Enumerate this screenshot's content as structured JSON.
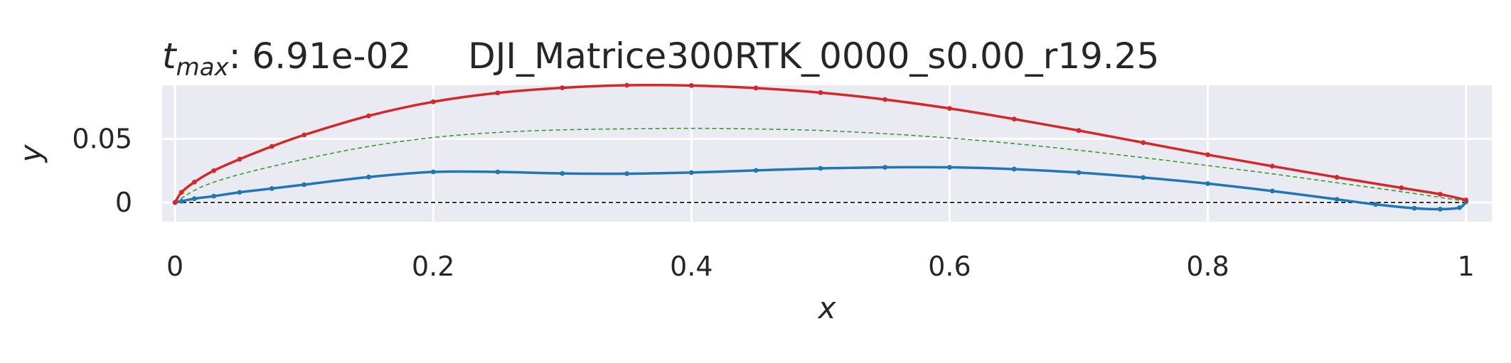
{
  "chart_data": {
    "type": "line",
    "title_var": "t",
    "title_sub": "max",
    "title_value": ": 6.91e-02",
    "title_name": "DJI_Matrice300RTK_0000_s0.00_r19.25",
    "xlabel": "x",
    "ylabel": "y",
    "xlim": [
      -0.01,
      1.02
    ],
    "ylim": [
      -0.015,
      0.092
    ],
    "x_ticks": [
      0,
      0.2,
      0.4,
      0.6,
      0.8,
      1
    ],
    "x_tick_labels": [
      "0",
      "0.2",
      "0.4",
      "0.6",
      "0.8",
      "1"
    ],
    "y_ticks": [
      0,
      0.05
    ],
    "y_tick_labels": [
      "0",
      "0.05"
    ],
    "grid": true,
    "background": "#eaeaf2",
    "series": [
      {
        "role": "upper-surface",
        "color": "#d62728",
        "markers": true,
        "x": [
          0,
          0.005,
          0.015,
          0.03,
          0.05,
          0.075,
          0.1,
          0.15,
          0.2,
          0.25,
          0.3,
          0.35,
          0.4,
          0.45,
          0.5,
          0.55,
          0.6,
          0.65,
          0.7,
          0.75,
          0.8,
          0.85,
          0.9,
          0.95,
          0.98,
          1.0
        ],
        "y": [
          0,
          0.008,
          0.016,
          0.025,
          0.034,
          0.044,
          0.053,
          0.068,
          0.079,
          0.086,
          0.09,
          0.092,
          0.0918,
          0.0898,
          0.0862,
          0.0808,
          0.0738,
          0.0655,
          0.0565,
          0.047,
          0.0375,
          0.0285,
          0.0198,
          0.0115,
          0.0065,
          0.002
        ]
      },
      {
        "role": "lower-surface",
        "color": "#1f77b4",
        "markers": true,
        "x": [
          0,
          0.005,
          0.015,
          0.03,
          0.05,
          0.075,
          0.1,
          0.15,
          0.2,
          0.25,
          0.3,
          0.35,
          0.4,
          0.45,
          0.5,
          0.55,
          0.6,
          0.65,
          0.7,
          0.75,
          0.8,
          0.85,
          0.9,
          0.93,
          0.96,
          0.98,
          0.995,
          1.0
        ],
        "y": [
          0,
          0.001,
          0.003,
          0.005,
          0.008,
          0.011,
          0.014,
          0.02,
          0.024,
          0.024,
          0.0228,
          0.0226,
          0.0235,
          0.0252,
          0.0268,
          0.0276,
          0.0276,
          0.0262,
          0.0235,
          0.0196,
          0.0148,
          0.009,
          0.0025,
          -0.0015,
          -0.0045,
          -0.0052,
          -0.004,
          0.0005
        ]
      },
      {
        "role": "camber-line",
        "color": "#2ca02c",
        "dashed": true,
        "x": [
          0,
          0.02,
          0.05,
          0.1,
          0.15,
          0.2,
          0.25,
          0.3,
          0.35,
          0.4,
          0.45,
          0.5,
          0.55,
          0.6,
          0.65,
          0.7,
          0.75,
          0.8,
          0.85,
          0.9,
          0.95,
          1.0
        ],
        "y": [
          0,
          0.012,
          0.022,
          0.034,
          0.044,
          0.051,
          0.055,
          0.057,
          0.0578,
          0.0582,
          0.0577,
          0.0565,
          0.054,
          0.0506,
          0.0462,
          0.041,
          0.0352,
          0.029,
          0.0225,
          0.0155,
          0.0085,
          0.001
        ]
      },
      {
        "role": "chord-line",
        "color": "#000000",
        "dashed": true,
        "x": [
          0,
          1
        ],
        "y": [
          0,
          0
        ]
      }
    ]
  }
}
